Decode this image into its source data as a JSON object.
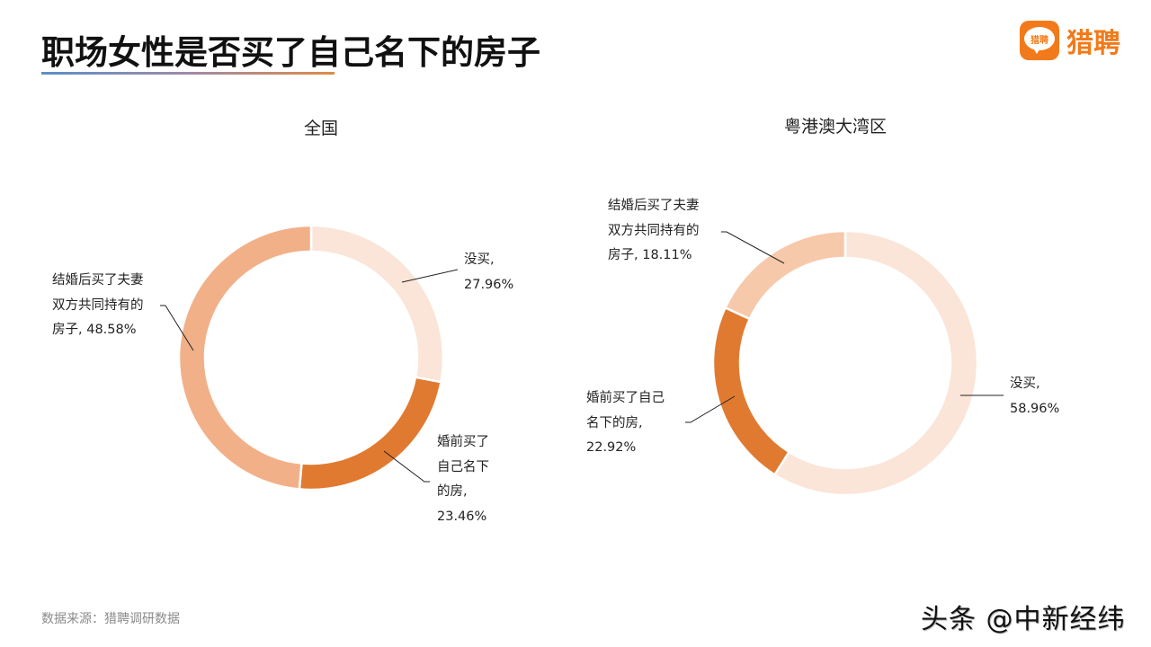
{
  "header": {
    "title": "职场女性是否买了自己名下的房子",
    "logo_icon_text": "猎聘",
    "logo_text": "猎聘"
  },
  "footer": {
    "source": "数据来源：猎聘调研数据",
    "watermark": "头条 @中新经纬"
  },
  "colors": {
    "not_bought": "#FAE5D8",
    "before_marriage": "#E07A30",
    "after_marriage_national": "#F2B088",
    "after_marriage_gba": "#F7C9AB",
    "accent": "#F27A1A"
  },
  "charts": [
    {
      "title": "全国",
      "labels": {
        "not_bought": [
          "没买,",
          "27.96%"
        ],
        "before_marriage": [
          "婚前买了",
          "自己名下",
          "的房,",
          "23.46%"
        ],
        "after_marriage": [
          "结婚后买了夫妻",
          "双方共同持有的",
          "房子, 48.58%"
        ]
      }
    },
    {
      "title": "粤港澳大湾区",
      "labels": {
        "not_bought": [
          "没买,",
          "58.96%"
        ],
        "before_marriage": [
          "婚前买了自己",
          "名下的房,",
          "22.92%"
        ],
        "after_marriage": [
          "结婚后买了夫妻",
          "双方共同持有的",
          "房子, 18.11%"
        ]
      }
    }
  ],
  "chart_data": [
    {
      "type": "pie",
      "title": "全国",
      "donut": true,
      "categories": [
        "没买",
        "婚前买了自己名下的房",
        "结婚后买了夫妻双方共同持有的房子"
      ],
      "values": [
        27.96,
        23.46,
        48.58
      ],
      "unit": "%",
      "colors": [
        "#FAE5D8",
        "#E07A30",
        "#F2B088"
      ],
      "start_angle": "12 o'clock",
      "direction": "clockwise"
    },
    {
      "type": "pie",
      "title": "粤港澳大湾区",
      "donut": true,
      "categories": [
        "没买",
        "婚前买了自己名下的房",
        "结婚后买了夫妻双方共同持有的房子"
      ],
      "values": [
        58.96,
        22.92,
        18.11
      ],
      "unit": "%",
      "colors": [
        "#FAE5D8",
        "#E07A30",
        "#F7C9AB"
      ],
      "start_angle": "12 o'clock",
      "direction": "clockwise"
    }
  ]
}
